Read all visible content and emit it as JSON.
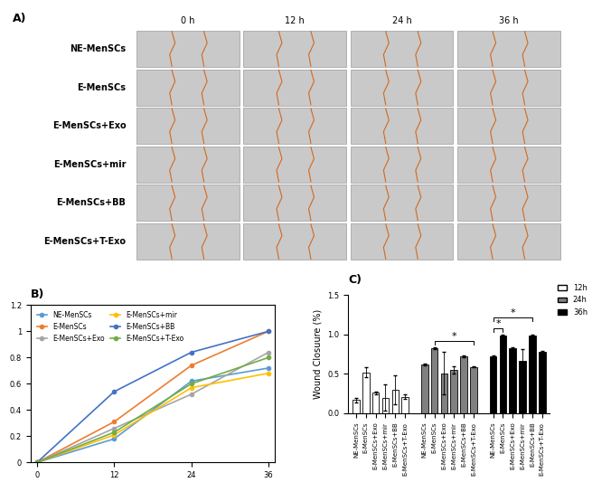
{
  "image_grid": {
    "title": "A)",
    "columns": [
      "0 h",
      "12 h",
      "24 h",
      "36 h"
    ],
    "rows": [
      "NE-MenSCs",
      "E-MenSCs",
      "E-MenSCs+Exo",
      "E-MenSCs+mir",
      "E-MenSCs+BB",
      "E-MenSCs+T-Exo"
    ]
  },
  "chart_data": [
    {
      "type": "line",
      "title": "B)",
      "x": [
        0,
        12,
        24,
        36
      ],
      "xlim": [
        -1,
        37
      ],
      "xticks": [
        0,
        12,
        24,
        36
      ],
      "ylim": [
        0,
        1.2
      ],
      "yticks": [
        0,
        0.2,
        0.4,
        0.6,
        0.8,
        1,
        1.2
      ],
      "legend": "upper left",
      "marker": "o",
      "series": [
        {
          "name": "NE-MenSCs",
          "color": "#5b9bd5",
          "values": [
            0,
            0.18,
            0.62,
            0.72
          ]
        },
        {
          "name": "E-MenSCs",
          "color": "#ed7d31",
          "values": [
            0,
            0.31,
            0.74,
            1.0
          ]
        },
        {
          "name": "E-MenSCs+Exo",
          "color": "#a5a5a5",
          "values": [
            0,
            0.26,
            0.52,
            0.84
          ]
        },
        {
          "name": "E-MenSCs+mir",
          "color": "#ffc000",
          "values": [
            0,
            0.21,
            0.57,
            0.68
          ]
        },
        {
          "name": "E-MenSCs+BB",
          "color": "#4472c4",
          "values": [
            0,
            0.54,
            0.84,
            1.0
          ]
        },
        {
          "name": "E-MenSCs+T-Exo",
          "color": "#70ad47",
          "values": [
            0,
            0.23,
            0.6,
            0.8
          ]
        }
      ]
    },
    {
      "type": "bar",
      "title": "C)",
      "y_label": "Wound Closuure (%)",
      "categories": [
        "NE-MenSCs",
        "E-MenSCs",
        "E-MenSCs+Exo",
        "E-MenSCs+mir",
        "E-MenSCs+BB",
        "E-MenSCs+T-Exo"
      ],
      "ylim": [
        0,
        1.5
      ],
      "yticks": [
        {
          "value": 0,
          "label": "0.0"
        },
        {
          "value": 0.5,
          "label": "0.5"
        },
        {
          "value": 1,
          "label": "1.0"
        },
        {
          "value": 1.5,
          "label": "1.5"
        }
      ],
      "legend": "upper right",
      "series": [
        {
          "name": "12h",
          "color": "#ffffff",
          "values": [
            0.17,
            0.52,
            0.26,
            0.2,
            0.3,
            0.21
          ],
          "errors": [
            0.03,
            0.06,
            0.02,
            0.17,
            0.18,
            0.03
          ]
        },
        {
          "name": "24h",
          "color": "#808080",
          "values": [
            0.62,
            0.83,
            0.51,
            0.55,
            0.72,
            0.59
          ],
          "errors": [
            0.01,
            0.01,
            0.27,
            0.05,
            0.01,
            0.01
          ]
        },
        {
          "name": "36h",
          "color": "#000000",
          "values": [
            0.72,
            0.99,
            0.83,
            0.67,
            0.99,
            0.78
          ],
          "errors": [
            0.01,
            0.01,
            0.01,
            0.15,
            0.01,
            0.01
          ]
        }
      ],
      "comparisons": [
        {
          "series": "24h",
          "from": "E-MenSCs",
          "to": "E-MenSCs+T-Exo",
          "label": "*"
        },
        {
          "series": "36h",
          "from": "NE-MenSCs",
          "to": "E-MenSCs",
          "label": "*"
        },
        {
          "series": "36h",
          "from": "NE-MenSCs",
          "to": "E-MenSCs+BB",
          "label": "*"
        }
      ]
    }
  ]
}
